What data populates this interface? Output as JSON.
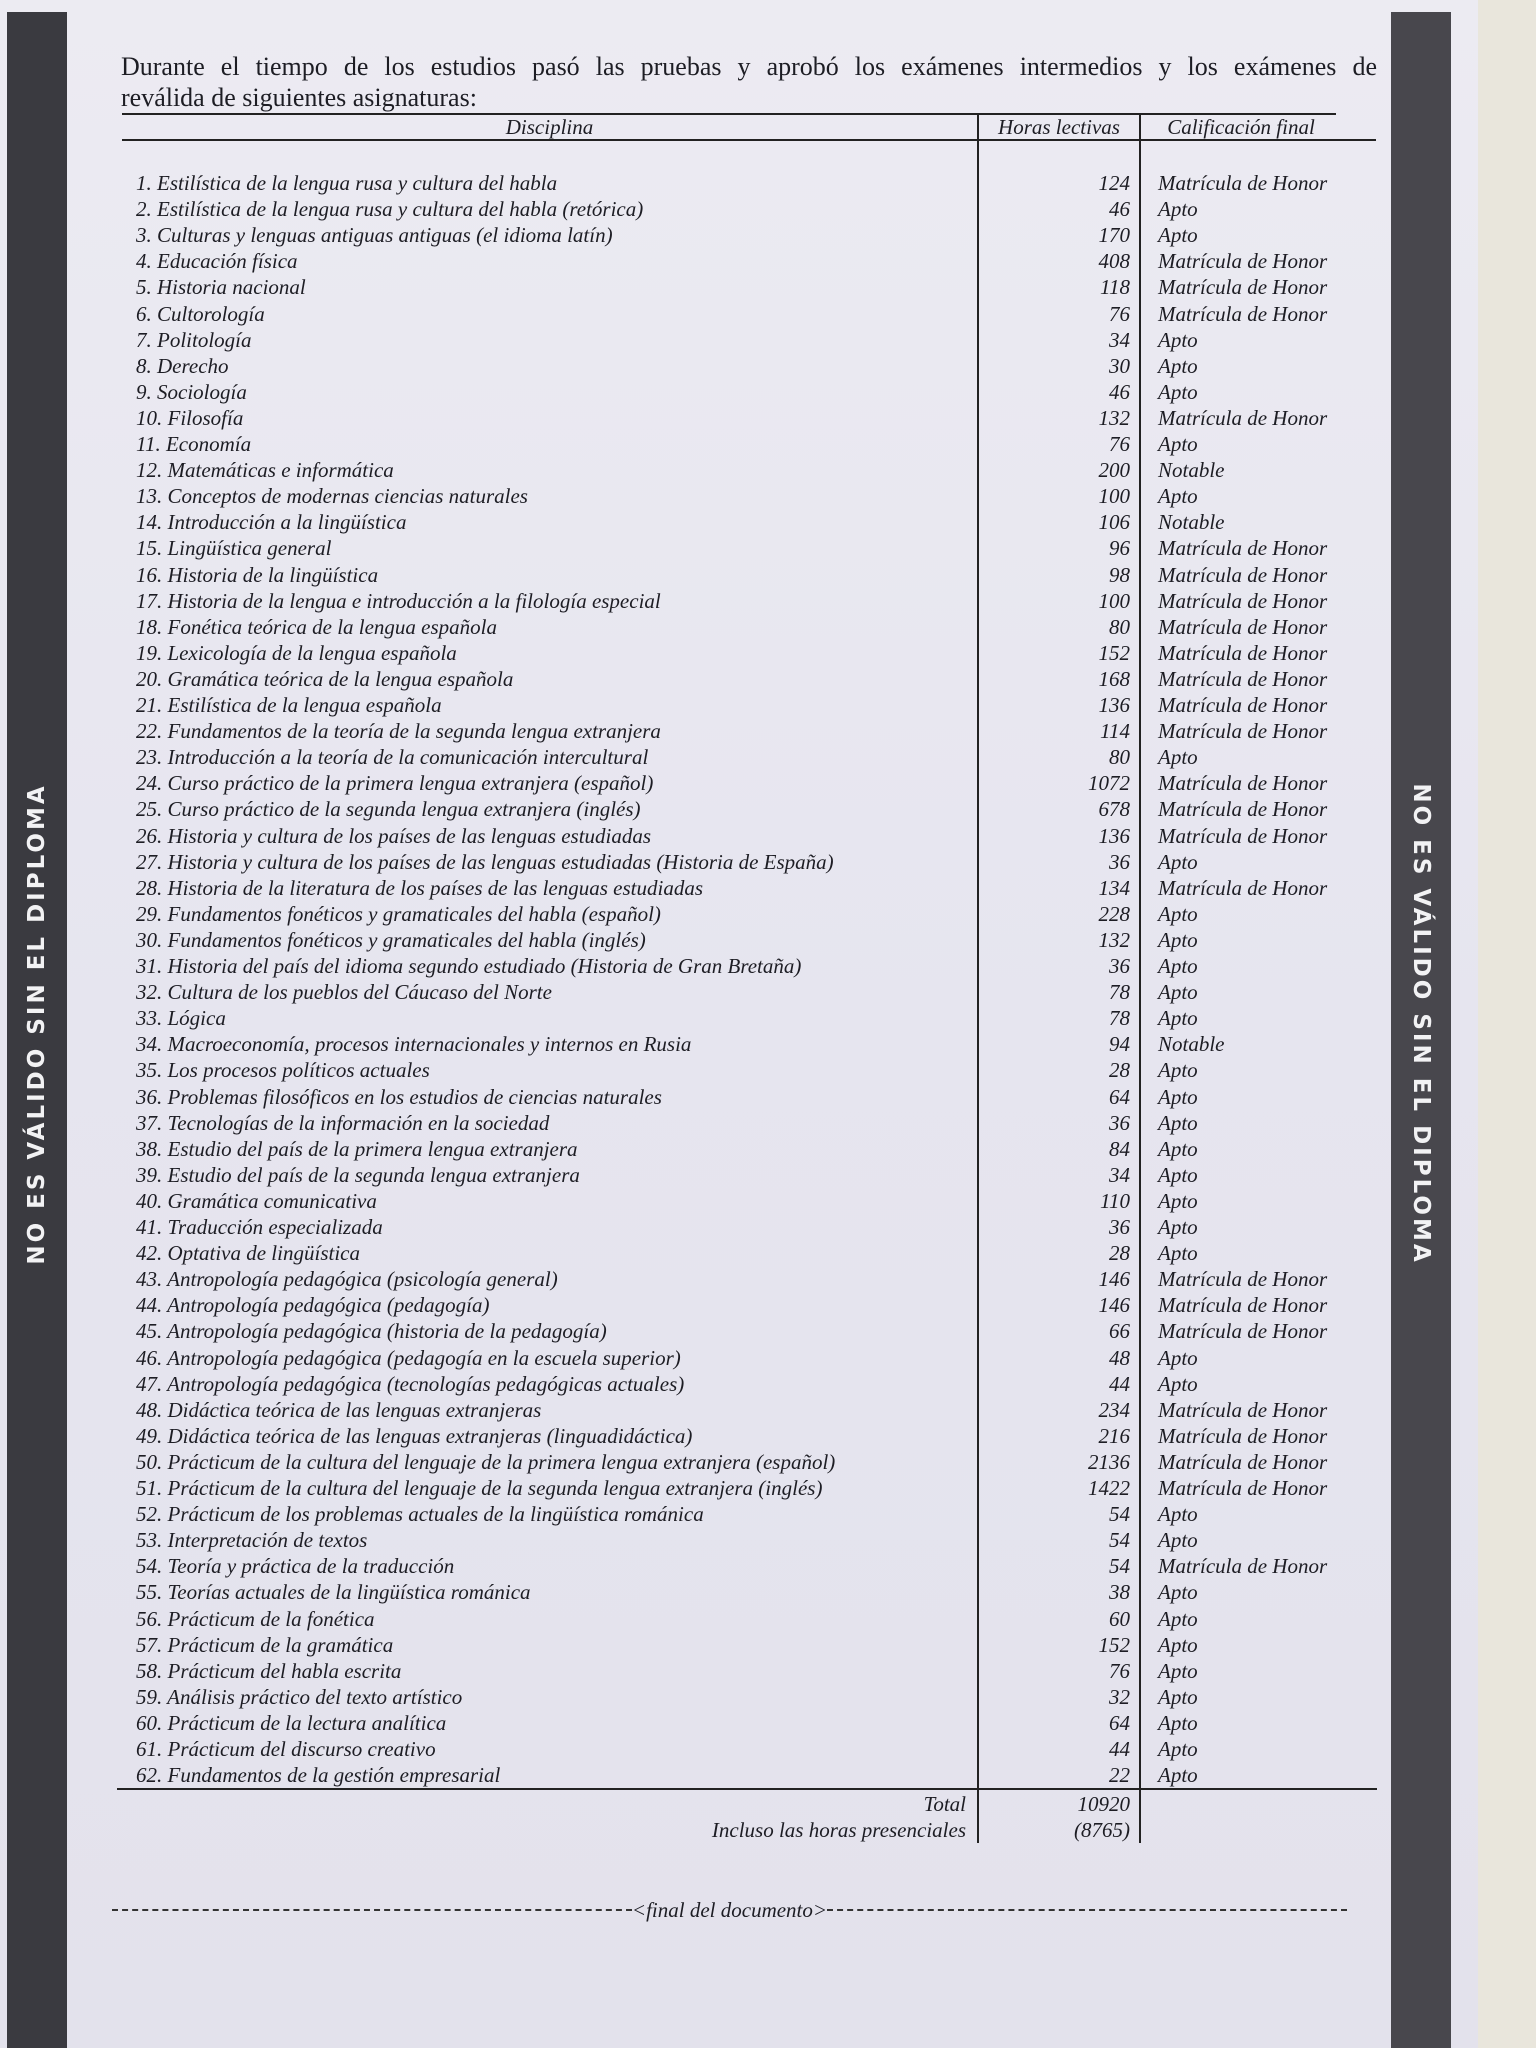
{
  "side_banner": "NO ES VÁLIDO SIN EL DIPLOMA",
  "intro_line1": "Durante el tiempo de los estudios pasó las pruebas y aprobó los exámenes intermedios y los exámenes de",
  "intro_line2": "reválida de siguientes asignaturas:",
  "columns": {
    "discipline": "Disciplina",
    "hours": "Horas lectivas",
    "grade": "Calificación final"
  },
  "rows": [
    {
      "d": "1. Estilística de la lengua rusa y cultura del habla",
      "h": "124",
      "g": "Matrícula de Honor"
    },
    {
      "d": "2. Estilística de la lengua rusa y cultura del habla (retórica)",
      "h": "46",
      "g": "Apto"
    },
    {
      "d": "3. Culturas y lenguas antiguas antiguas (el idioma latín)",
      "h": "170",
      "g": "Apto"
    },
    {
      "d": "4. Educación física",
      "h": "408",
      "g": "Matrícula de Honor"
    },
    {
      "d": "5. Historia nacional",
      "h": "118",
      "g": "Matrícula de Honor"
    },
    {
      "d": "6. Cultorología",
      "h": "76",
      "g": "Matrícula de Honor"
    },
    {
      "d": "7. Politología",
      "h": "34",
      "g": "Apto"
    },
    {
      "d": "8. Derecho",
      "h": "30",
      "g": "Apto"
    },
    {
      "d": "9. Sociología",
      "h": "46",
      "g": "Apto"
    },
    {
      "d": "10. Filosofía",
      "h": "132",
      "g": "Matrícula de Honor"
    },
    {
      "d": "11. Economía",
      "h": "76",
      "g": "Apto"
    },
    {
      "d": "12. Matemáticas e informática",
      "h": "200",
      "g": "Notable"
    },
    {
      "d": "13. Conceptos de modernas ciencias naturales",
      "h": "100",
      "g": "Apto"
    },
    {
      "d": "14. Introducción a la lingüística",
      "h": "106",
      "g": "Notable"
    },
    {
      "d": "15. Lingüística general",
      "h": "96",
      "g": "Matrícula de Honor"
    },
    {
      "d": "16. Historia de la lingüística",
      "h": "98",
      "g": "Matrícula de Honor"
    },
    {
      "d": "17. Historia de la lengua e introducción a la filología especial",
      "h": "100",
      "g": "Matrícula de Honor"
    },
    {
      "d": "18. Fonética teórica  de la lengua española",
      "h": "80",
      "g": "Matrícula de Honor"
    },
    {
      "d": "19. Lexicología de la lengua española",
      "h": "152",
      "g": "Matrícula de Honor"
    },
    {
      "d": "20. Gramática teórica de la lengua española",
      "h": "168",
      "g": "Matrícula de Honor"
    },
    {
      "d": "21. Estilística de la lengua española",
      "h": "136",
      "g": "Matrícula de Honor"
    },
    {
      "d": "22. Fundamentos de la teoría de la segunda lengua extranjera",
      "h": "114",
      "g": "Matrícula de Honor"
    },
    {
      "d": "23. Introducción a la teoría de la comunicación intercultural",
      "h": "80",
      "g": "Apto"
    },
    {
      "d": "24. Curso práctico de la primera lengua extranjera (español)",
      "h": "1072",
      "g": "Matrícula de Honor"
    },
    {
      "d": "25. Curso práctico de la segunda lengua extranjera (inglés)",
      "h": "678",
      "g": "Matrícula de Honor"
    },
    {
      "d": "26. Historia y cultura de los países de las lenguas estudiadas",
      "h": "136",
      "g": "Matrícula de Honor"
    },
    {
      "d": "27. Historia y cultura de los países de las lenguas estudiadas (Historia de España)",
      "h": "36",
      "g": "Apto"
    },
    {
      "d": "28. Historia de la literatura de los países de las lenguas estudiadas",
      "h": "134",
      "g": "Matrícula de Honor"
    },
    {
      "d": "29. Fundamentos fonéticos y gramaticales del habla (español)",
      "h": "228",
      "g": "Apto"
    },
    {
      "d": "30. Fundamentos fonéticos y gramaticales del habla (inglés)",
      "h": "132",
      "g": "Apto"
    },
    {
      "d": "31. Historia del país del idioma segundo estudiado (Historia de Gran Bretaña)",
      "h": "36",
      "g": "Apto"
    },
    {
      "d": "32. Cultura de los pueblos del Cáucaso del Norte",
      "h": "78",
      "g": "Apto"
    },
    {
      "d": "33. Lógica",
      "h": "78",
      "g": "Apto"
    },
    {
      "d": "34. Macroeconomía, procesos internacionales y internos en Rusia",
      "h": "94",
      "g": "Notable"
    },
    {
      "d": "35. Los procesos políticos actuales",
      "h": "28",
      "g": "Apto"
    },
    {
      "d": "36. Problemas filosóficos en los estudios de ciencias naturales",
      "h": "64",
      "g": "Apto"
    },
    {
      "d": "37. Tecnologías de la información en la sociedad",
      "h": "36",
      "g": "Apto"
    },
    {
      "d": "38.  Estudio del país de la primera lengua extranjera",
      "h": "84",
      "g": "Apto"
    },
    {
      "d": "39. Estudio del país de la segunda lengua extranjera",
      "h": "34",
      "g": "Apto"
    },
    {
      "d": "40. Gramática comunicativa",
      "h": "110",
      "g": "Apto"
    },
    {
      "d": "41. Traducción especializada",
      "h": "36",
      "g": "Apto"
    },
    {
      "d": "42. Optativa de lingüística",
      "h": "28",
      "g": "Apto"
    },
    {
      "d": "43. Antropología pedagógica (psicología general)",
      "h": "146",
      "g": "Matrícula de Honor"
    },
    {
      "d": "44. Antropología pedagógica (pedagogía)",
      "h": "146",
      "g": "Matrícula de Honor"
    },
    {
      "d": "45. Antropología pedagógica (historia de la pedagogía)",
      "h": "66",
      "g": "Matrícula de Honor"
    },
    {
      "d": "46. Antropología pedagógica (pedagogía en la escuela superior)",
      "h": "48",
      "g": "Apto"
    },
    {
      "d": "47. Antropología pedagógica (tecnologías pedagógicas actuales)",
      "h": "44",
      "g": "Apto"
    },
    {
      "d": "48. Didáctica teórica de las lenguas extranjeras",
      "h": "234",
      "g": "Matrícula de Honor"
    },
    {
      "d": "49. Didáctica teórica de las lenguas  extranjeras (linguadidáctica)",
      "h": "216",
      "g": "Matrícula de Honor"
    },
    {
      "d": "50. Prácticum de la cultura del lenguaje de la primera lengua extranjera (español)",
      "h": "2136",
      "g": "Matrícula de Honor"
    },
    {
      "d": "51. Prácticum de la cultura del lenguaje de la segunda lengua extranjera (inglés)",
      "h": "1422",
      "g": "Matrícula de Honor"
    },
    {
      "d": "52. Prácticum de los problemas actuales de la lingüística románica",
      "h": "54",
      "g": "Apto"
    },
    {
      "d": "53. Interpretación de textos",
      "h": "54",
      "g": "Apto"
    },
    {
      "d": "54. Teoría y práctica de la traducción",
      "h": "54",
      "g": "Matrícula de Honor"
    },
    {
      "d": "55. Teorías actuales de la lingüística románica",
      "h": "38",
      "g": "Apto"
    },
    {
      "d": "56. Prácticum de la fonética",
      "h": "60",
      "g": "Apto"
    },
    {
      "d": "57. Prácticum de la gramática",
      "h": "152",
      "g": "Apto"
    },
    {
      "d": "58. Prácticum del habla escrita",
      "h": "76",
      "g": "Apto"
    },
    {
      "d": "59. Análisis práctico del texto artístico",
      "h": "32",
      "g": "Apto"
    },
    {
      "d": "60. Prácticum de la lectura analítica",
      "h": "64",
      "g": "Apto"
    },
    {
      "d": "61. Prácticum del discurso creativo",
      "h": "44",
      "g": "Apto"
    },
    {
      "d": "62. Fundamentos de la gestión empresarial",
      "h": "22",
      "g": "Apto"
    }
  ],
  "totals": {
    "total_label": "Total",
    "total_value": "10920",
    "presential_label": "Incluso las horas presenciales",
    "presential_value": "(8765)"
  },
  "end_marker": "<final del documento>"
}
